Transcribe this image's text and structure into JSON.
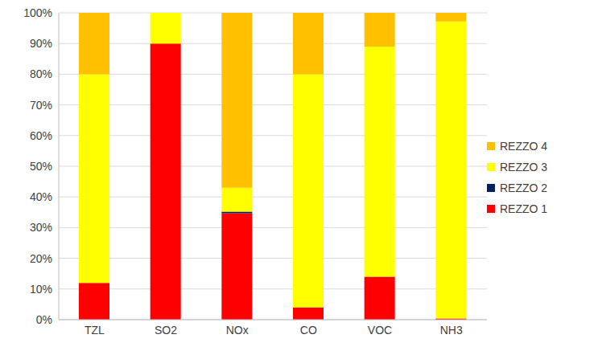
{
  "chart_data": {
    "type": "bar",
    "stacked": true,
    "grid": true,
    "legend": "right",
    "categories": [
      "TZL",
      "SO2",
      "NOx",
      "CO",
      "VOC",
      "NH3"
    ],
    "series": [
      {
        "name": "REZZO 1",
        "color": "#ff0000",
        "values": [
          12,
          90,
          34.7,
          4,
          14,
          0.4
        ]
      },
      {
        "name": "REZZO 2",
        "color": "#002060",
        "values": [
          0,
          0,
          0.5,
          0,
          0,
          0
        ]
      },
      {
        "name": "REZZO 3",
        "color": "#ffff00",
        "values": [
          68,
          10,
          7.8,
          76,
          75,
          96.8
        ]
      },
      {
        "name": "REZZO 4",
        "color": "#ffc000",
        "values": [
          20,
          0,
          57,
          20,
          11,
          2.8
        ]
      }
    ],
    "ylim": [
      0,
      100
    ],
    "yticks": [
      {
        "value": 0,
        "label": "0%"
      },
      {
        "value": 10,
        "label": "10%"
      },
      {
        "value": 20,
        "label": "20%"
      },
      {
        "value": 30,
        "label": "30%"
      },
      {
        "value": 40,
        "label": "40%"
      },
      {
        "value": 50,
        "label": "50%"
      },
      {
        "value": 60,
        "label": "60%"
      },
      {
        "value": 70,
        "label": "70%"
      },
      {
        "value": 80,
        "label": "80%"
      },
      {
        "value": 90,
        "label": "90%"
      },
      {
        "value": 100,
        "label": "100%"
      }
    ]
  }
}
